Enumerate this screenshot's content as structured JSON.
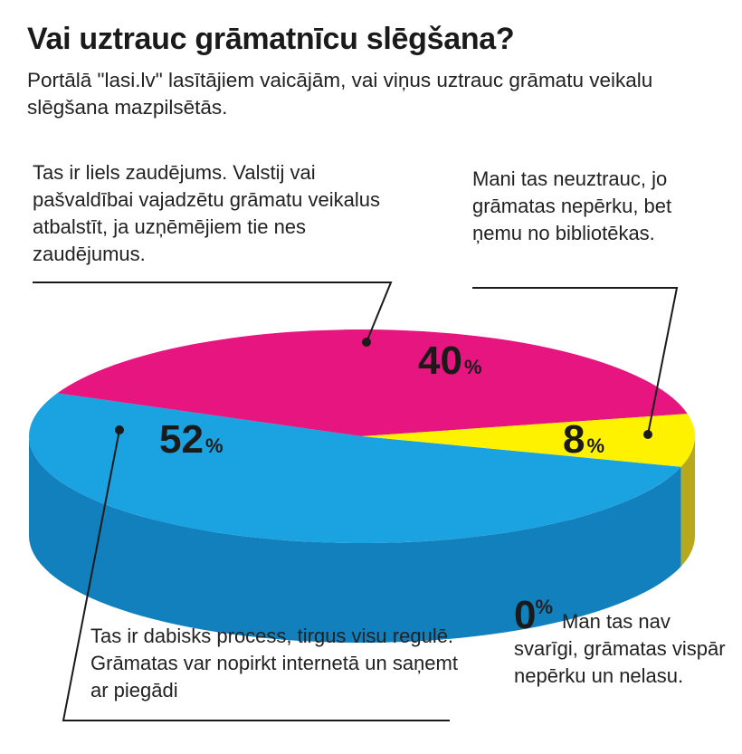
{
  "title": "Vai uztrauc grāmatnīcu slēgšana?",
  "subtitle": "Portālā \"lasi.lv\" lasītājiem vaicājām, vai viņus uztrauc grāmatu veikalu slēgšana mazpilsētās.",
  "chart_data": {
    "type": "pie",
    "title": "Vai uztrauc grāmatnīcu slēgšana?",
    "unit": "%",
    "slices": [
      {
        "label": "Tas ir dabisks process, tirgus visu regulē. Grāmatas var nopirkt internetā un saņemt ar piegādi",
        "value": 52,
        "color": "#1aa3e0"
      },
      {
        "label": "Tas ir liels zaudējums. Valstij vai pašvaldībai vajadzētu grāmatu veikalus atbalstīt, ja uzņēmējiem tie nes zaudējumus.",
        "value": 40,
        "color": "#e6157f"
      },
      {
        "label": "Mani tas neuztrauc, jo grāmatas nepērku, bet ņemu no bibliotēkas.",
        "value": 8,
        "color": "#fff200"
      },
      {
        "label": "Man tas nav svarīgi, grāmatas vispār nepērku un nelasu.",
        "value": 0,
        "color": "#000000"
      }
    ]
  },
  "labels": {
    "big_loss": "Tas ir liels zaudējums. Valstij vai pašvaldībai vajadzētu grāmatu veikalus atbalstīt, ja uzņēmējiem tie nes zaudējumus.",
    "no_worry": "Mani tas neuztrauc, jo grāmatas nepērku, bet ņemu no bibliotēkas.",
    "natural": "Tas ir dabisks process, tirgus visu regulē. Grāmatas var nopirkt internetā un saņemt ar piegādi",
    "zero_value": "0",
    "zero_pct": "%",
    "zero_text": "Man tas nav svarīgi, grāmatas vispār nepērku un nelasu."
  },
  "value_labels": {
    "blue": {
      "num": "52",
      "sym": "%"
    },
    "pink": {
      "num": "40",
      "sym": "%"
    },
    "yellow": {
      "num": "8",
      "sym": "%"
    }
  },
  "colors": {
    "blue_top": "#1aa3e0",
    "blue_side": "#1180bd",
    "pink_top": "#e6157f",
    "yellow_top": "#fff200",
    "yellow_side": "#b8a91c",
    "leader": "#1a1a1a"
  }
}
